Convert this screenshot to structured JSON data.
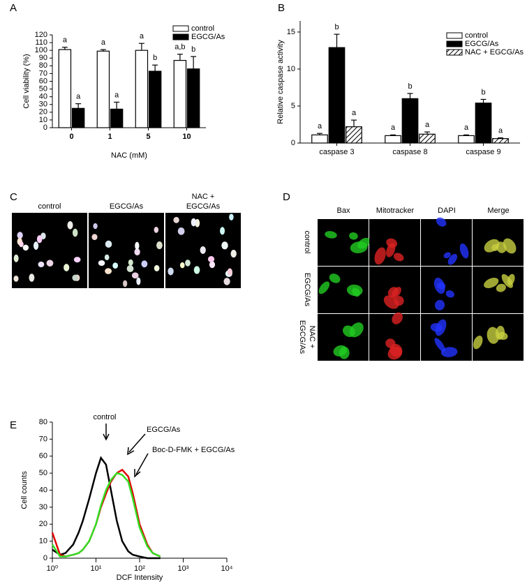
{
  "chart_data": [
    {
      "type": "bar",
      "panel": "A",
      "xlabel": "NAC (mM)",
      "ylabel": "Cell viability (%)",
      "categories": [
        "0",
        "1",
        "5",
        "10"
      ],
      "series": [
        {
          "name": "control",
          "color": "#ffffff",
          "values": [
            101,
            99,
            100,
            87
          ],
          "errors": [
            3,
            2,
            9,
            8
          ],
          "labels": [
            "a",
            "a",
            "a",
            "a,b"
          ]
        },
        {
          "name": "EGCG/As",
          "color": "#000000",
          "values": [
            25,
            24,
            73,
            76
          ],
          "errors": [
            6,
            9,
            8,
            16
          ],
          "labels": [
            "a",
            "a",
            "b",
            "b"
          ]
        }
      ],
      "ylim": [
        0,
        120
      ],
      "yticks": [
        0,
        10,
        20,
        30,
        40,
        50,
        60,
        70,
        80,
        90,
        100,
        110,
        120
      ],
      "legend": "top-right"
    },
    {
      "type": "bar",
      "panel": "B",
      "ylabel": "Relative caspase activity",
      "categories": [
        "caspase 3",
        "caspase 8",
        "caspase 9"
      ],
      "series": [
        {
          "name": "control",
          "color": "#ffffff",
          "values": [
            1.1,
            1.0,
            1.0
          ],
          "errors": [
            0.2,
            0.1,
            0.1
          ],
          "labels": [
            "a",
            "a",
            "a"
          ]
        },
        {
          "name": "EGCG/As",
          "color": "#000000",
          "values": [
            12.9,
            6.0,
            5.4
          ],
          "errors": [
            1.8,
            0.7,
            0.5
          ],
          "labels": [
            "b",
            "b",
            "b"
          ]
        },
        {
          "name": "NAC + EGCG/As",
          "color": "#ffffff",
          "hatch": true,
          "values": [
            2.2,
            1.2,
            0.6
          ],
          "errors": [
            0.9,
            0.3,
            0.1
          ],
          "labels": [
            "a",
            "a",
            "a"
          ]
        }
      ],
      "ylim": [
        0,
        16.5
      ],
      "yticks": [
        0,
        5,
        10,
        15
      ],
      "legend": "top-right"
    },
    {
      "type": "line",
      "panel": "E",
      "xlabel": "DCF Intensity",
      "ylabel": "Cell counts",
      "xscale": "log",
      "x": [
        1,
        1.5,
        2,
        3,
        4,
        5,
        7,
        10,
        13,
        17,
        22,
        30,
        40,
        55,
        70,
        100,
        150,
        200,
        300
      ],
      "series": [
        {
          "name": "control",
          "color": "#000000",
          "values": [
            5,
            2,
            3,
            8,
            15,
            22,
            35,
            50,
            59,
            55,
            40,
            22,
            10,
            4,
            2,
            1,
            0,
            0,
            0
          ]
        },
        {
          "name": "EGCG/As",
          "color": "#e00000",
          "values": [
            15,
            2,
            1,
            2,
            3,
            5,
            10,
            20,
            30,
            38,
            45,
            50,
            52,
            48,
            38,
            20,
            8,
            3,
            1
          ]
        },
        {
          "name": "Boc-D-FMK + EGCG/As",
          "color": "#33dd22",
          "values": [
            8,
            1,
            1,
            2,
            3,
            5,
            10,
            20,
            31,
            40,
            46,
            50,
            49,
            45,
            35,
            18,
            7,
            3,
            1
          ]
        }
      ],
      "xlim": [
        1,
        10000
      ],
      "xticks": [
        {
          "value": 1,
          "label": "10⁰"
        },
        {
          "value": 10,
          "label": "10¹"
        },
        {
          "value": 100,
          "label": "10²"
        },
        {
          "value": 1000,
          "label": "10³"
        },
        {
          "value": 10000,
          "label": "10⁴"
        }
      ],
      "ylim": [
        0,
        80
      ],
      "yticks": [
        0,
        10,
        20,
        30,
        40,
        50,
        60,
        70,
        80
      ]
    }
  ],
  "images": {
    "C": {
      "panel": "C",
      "columns": [
        "control",
        "EGCG/As",
        "NAC +\nEGCG/As"
      ]
    },
    "D": {
      "panel": "D",
      "columns": [
        "Bax",
        "Mitotracker",
        "DAPI",
        "Merge"
      ],
      "rows": [
        "control",
        "EGCG/As",
        "NAC +\nEGCG/As"
      ]
    }
  }
}
